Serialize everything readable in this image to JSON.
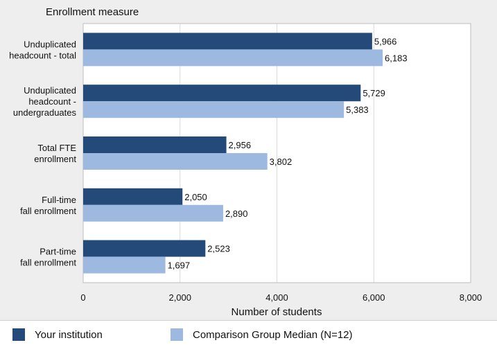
{
  "chart_data": {
    "type": "bar",
    "orientation": "horizontal",
    "title": "Enrollment measure",
    "xlabel": "Number of students",
    "xlim": [
      0,
      8000
    ],
    "xticks": [
      0,
      2000,
      4000,
      6000,
      8000
    ],
    "xtick_labels": [
      "0",
      "2,000",
      "4,000",
      "6,000",
      "8,000"
    ],
    "grid": true,
    "legend_position": "bottom",
    "categories": [
      [
        "Unduplicated",
        "headcount - total"
      ],
      [
        "Unduplicated",
        "headcount -",
        "undergraduates"
      ],
      [
        "Total FTE",
        "enrollment"
      ],
      [
        "Full-time",
        "fall enrollment"
      ],
      [
        "Part-time",
        "fall enrollment"
      ]
    ],
    "series": [
      {
        "name": "Your institution",
        "color": "#244a7a",
        "values": [
          5966,
          5729,
          2956,
          2050,
          2523
        ],
        "labels": [
          "5,966",
          "5,729",
          "2,956",
          "2,050",
          "2,523"
        ]
      },
      {
        "name": "Comparison Group Median (N=12)",
        "color": "#9db9e0",
        "values": [
          6183,
          5383,
          3802,
          2890,
          1697
        ],
        "labels": [
          "6,183",
          "5,383",
          "3,802",
          "2,890",
          "1,697"
        ]
      }
    ]
  },
  "legend": {
    "items": [
      {
        "label": "Your institution",
        "color": "#244a7a"
      },
      {
        "label": "Comparison Group Median (N=12)",
        "color": "#9db9e0"
      }
    ]
  }
}
